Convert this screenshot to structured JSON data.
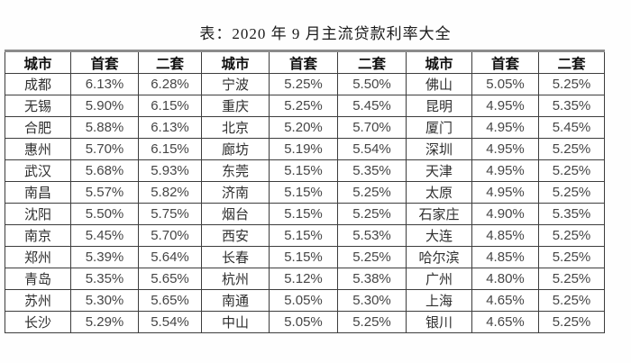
{
  "title": "表：2020 年 9 月主流贷款利率大全",
  "table": {
    "headers": [
      "城市",
      "首套",
      "二套",
      "城市",
      "首套",
      "二套",
      "城市",
      "首套",
      "二套"
    ],
    "rows": [
      [
        "成都",
        "6.13%",
        "6.28%",
        "宁波",
        "5.25%",
        "5.50%",
        "佛山",
        "5.05%",
        "5.25%"
      ],
      [
        "无锡",
        "5.90%",
        "6.15%",
        "重庆",
        "5.25%",
        "5.45%",
        "昆明",
        "4.95%",
        "5.35%"
      ],
      [
        "合肥",
        "5.88%",
        "6.13%",
        "北京",
        "5.20%",
        "5.70%",
        "厦门",
        "4.95%",
        "5.45%"
      ],
      [
        "惠州",
        "5.70%",
        "6.15%",
        "廊坊",
        "5.19%",
        "5.54%",
        "深圳",
        "4.95%",
        "5.25%"
      ],
      [
        "武汉",
        "5.68%",
        "5.93%",
        "东莞",
        "5.15%",
        "5.35%",
        "天津",
        "4.95%",
        "5.25%"
      ],
      [
        "南昌",
        "5.57%",
        "5.82%",
        "济南",
        "5.15%",
        "5.25%",
        "太原",
        "4.95%",
        "5.25%"
      ],
      [
        "沈阳",
        "5.50%",
        "5.75%",
        "烟台",
        "5.15%",
        "5.25%",
        "石家庄",
        "4.90%",
        "5.35%"
      ],
      [
        "南京",
        "5.45%",
        "5.70%",
        "西安",
        "5.15%",
        "5.53%",
        "大连",
        "4.85%",
        "5.25%"
      ],
      [
        "郑州",
        "5.39%",
        "5.64%",
        "长春",
        "5.15%",
        "5.25%",
        "哈尔滨",
        "4.85%",
        "5.25%"
      ],
      [
        "青岛",
        "5.35%",
        "5.65%",
        "杭州",
        "5.12%",
        "5.38%",
        "广州",
        "4.80%",
        "5.25%"
      ],
      [
        "苏州",
        "5.30%",
        "5.65%",
        "南通",
        "5.05%",
        "5.30%",
        "上海",
        "4.65%",
        "5.25%"
      ],
      [
        "长沙",
        "5.29%",
        "5.54%",
        "中山",
        "5.05%",
        "5.25%",
        "银川",
        "4.65%",
        "5.25%"
      ]
    ]
  },
  "colors": {
    "border": "#3d3d3d",
    "top_border": "#8b8b8b",
    "header_text": "#0f0f0f",
    "city_text": "#2f2f2f",
    "rate_text": "#454545",
    "background": "#fdfdfd"
  }
}
